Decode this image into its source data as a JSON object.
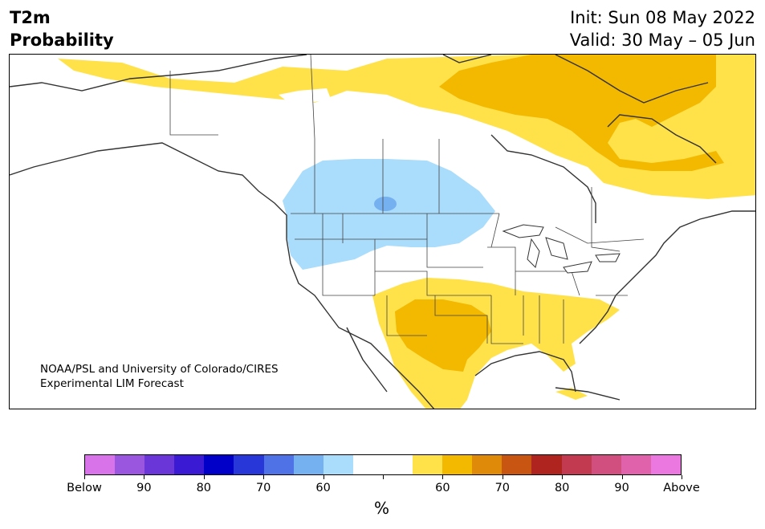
{
  "header": {
    "title_line1": "T2m",
    "title_line2": "Probability",
    "init": "Init: Sun 08 May 2022",
    "valid": "Valid: 30 May – 05 Jun"
  },
  "map": {
    "credit_line1": "NOAA/PSL and University of Colorado/CIRES",
    "credit_line2": "Experimental LIM Forecast"
  },
  "colorbar": {
    "colors": [
      "#d873ea",
      "#9b56e0",
      "#6a36d8",
      "#3a1ad2",
      "#0000c8",
      "#2838d8",
      "#4f73e6",
      "#75b0f0",
      "#aadcfb",
      "#ffffff",
      "#ffffff",
      "#ffe24a",
      "#f3b800",
      "#e08a0a",
      "#c85512",
      "#b02420",
      "#c23a50",
      "#d04f7e",
      "#e062aa",
      "#ea78e0"
    ],
    "ticks": [
      "Below",
      "90",
      "80",
      "70",
      "60",
      "",
      "60",
      "70",
      "80",
      "90",
      "Above"
    ],
    "unit": "%"
  },
  "legend_colors": {
    "below_60": "#aadcfb",
    "below_70": "#75b0f0",
    "above_60": "#ffe24a",
    "above_70": "#f3b800"
  }
}
